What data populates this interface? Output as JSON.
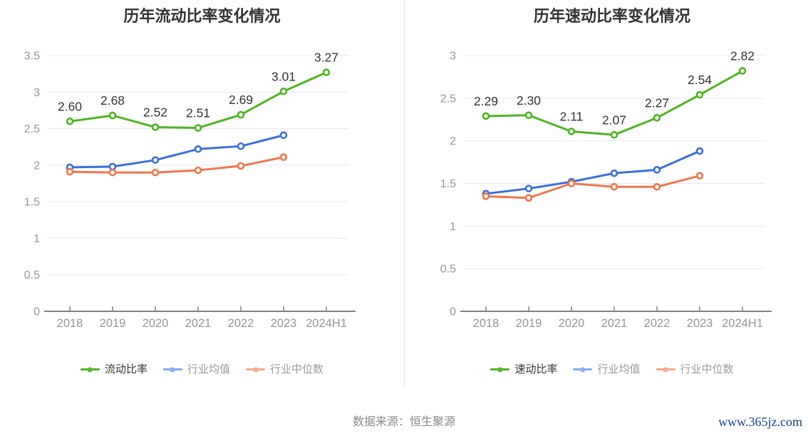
{
  "footer": {
    "source": "数据来源：恒生聚源",
    "site": "www.365jz.com"
  },
  "style": {
    "grid_color": "#e4e9f3",
    "axis_color": "#828282",
    "tick_label_color": "#969696",
    "value_label_color": "#333333",
    "title_color": "#333333",
    "divider_color": "#ebebeb"
  },
  "chart_data": [
    {
      "type": "line",
      "title": "历年流动比率变化情况",
      "categories": [
        "2018",
        "2019",
        "2020",
        "2021",
        "2022",
        "2023",
        "2024H1"
      ],
      "ylim": [
        0,
        3.5
      ],
      "ytick_step": 0.5,
      "ytick_labels": [
        "0",
        "0.5",
        "1",
        "1.5",
        "2",
        "2.5",
        "3",
        "3.5"
      ],
      "grid": true,
      "legend_position": "bottom",
      "series": [
        {
          "name": "流动比率",
          "slug": "current-ratio",
          "color": "#50b422",
          "legend_marker_color": "#50b422",
          "legend_text_color": "#333333",
          "values": [
            2.6,
            2.68,
            2.52,
            2.51,
            2.69,
            3.01,
            3.27
          ],
          "point_labels": [
            "2.60",
            "2.68",
            "2.52",
            "2.51",
            "2.69",
            "3.01",
            "3.27"
          ]
        },
        {
          "name": "行业均值",
          "slug": "industry-average",
          "color": "#3b70db",
          "legend_marker_color": "#84aaef",
          "legend_text_color": "#999999",
          "values": [
            1.97,
            1.98,
            2.07,
            2.22,
            2.26,
            2.41
          ]
        },
        {
          "name": "行业中位数",
          "slug": "industry-median",
          "color": "#f0774d",
          "legend_marker_color": "#f6a688",
          "legend_text_color": "#999999",
          "values": [
            1.91,
            1.9,
            1.9,
            1.93,
            1.99,
            2.11
          ]
        }
      ]
    },
    {
      "type": "line",
      "title": "历年速动比率变化情况",
      "categories": [
        "2018",
        "2019",
        "2020",
        "2021",
        "2022",
        "2023",
        "2024H1"
      ],
      "ylim": [
        0,
        3
      ],
      "ytick_step": 0.5,
      "ytick_labels": [
        "0",
        "0.5",
        "1",
        "1.5",
        "2",
        "2.5",
        "3"
      ],
      "grid": true,
      "legend_position": "bottom",
      "series": [
        {
          "name": "速动比率",
          "slug": "quick-ratio",
          "color": "#50b422",
          "legend_marker_color": "#50b422",
          "legend_text_color": "#333333",
          "values": [
            2.29,
            2.3,
            2.11,
            2.07,
            2.27,
            2.54,
            2.82
          ],
          "point_labels": [
            "2.29",
            "2.30",
            "2.11",
            "2.07",
            "2.27",
            "2.54",
            "2.82"
          ]
        },
        {
          "name": "行业均值",
          "slug": "industry-average",
          "color": "#3b70db",
          "legend_marker_color": "#84aaef",
          "legend_text_color": "#999999",
          "values": [
            1.38,
            1.44,
            1.52,
            1.62,
            1.66,
            1.88
          ]
        },
        {
          "name": "行业中位数",
          "slug": "industry-median",
          "color": "#f0774d",
          "legend_marker_color": "#f6a688",
          "legend_text_color": "#999999",
          "values": [
            1.35,
            1.33,
            1.5,
            1.46,
            1.46,
            1.59
          ]
        }
      ]
    }
  ]
}
